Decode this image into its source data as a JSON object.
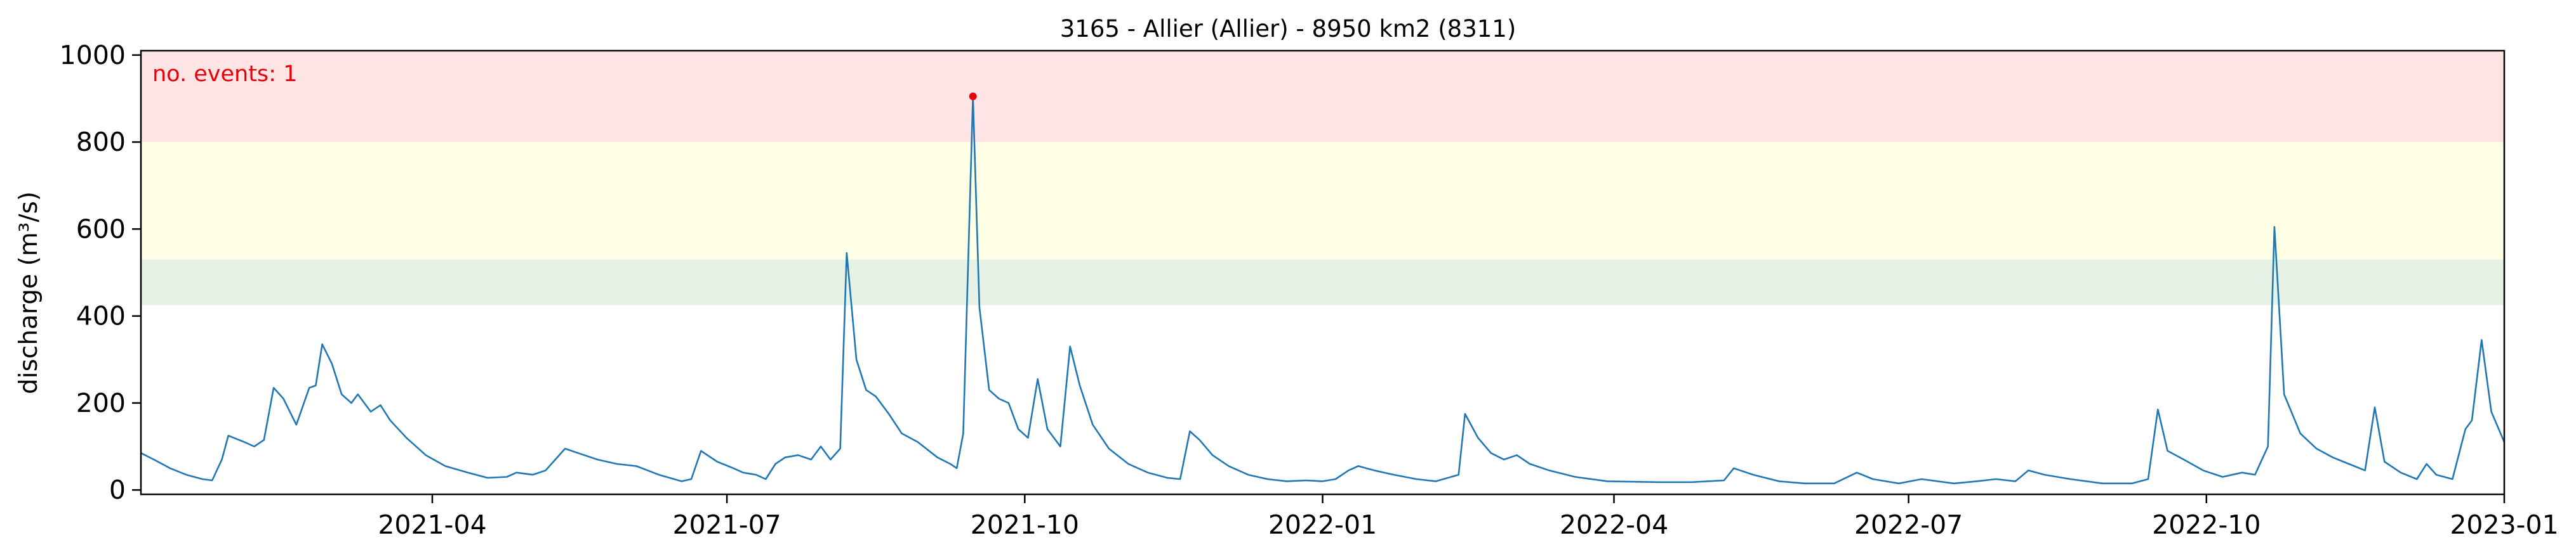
{
  "chart_data": {
    "type": "line",
    "title": "3165 - Allier (Allier) - 8950 km2 (8311)",
    "xlabel": "",
    "ylabel": "discharge (m³/s)",
    "xlim": [
      "2021-01-01",
      "2023-01-01"
    ],
    "ylim": [
      -10,
      1010
    ],
    "x_ticks": [
      "2021-04-01",
      "2021-07-01",
      "2021-10-01",
      "2022-01-01",
      "2022-04-01",
      "2022-07-01",
      "2022-10-01",
      "2023-01-01"
    ],
    "x_tick_labels": [
      "2021-04",
      "2021-07",
      "2021-10",
      "2022-01",
      "2022-04",
      "2022-07",
      "2022-10",
      "2023-01"
    ],
    "y_ticks": [
      0,
      200,
      400,
      600,
      800,
      1000
    ],
    "y_tick_labels": [
      "0",
      "200",
      "400",
      "600",
      "800",
      "1000"
    ],
    "grid": false,
    "threshold_bands": [
      {
        "from": 425,
        "to": 530,
        "color": "#e6f2e6"
      },
      {
        "from": 530,
        "to": 800,
        "color": "#fefee5"
      },
      {
        "from": 800,
        "to": 1010,
        "color": "#ffe4e6"
      }
    ],
    "annotation": "no. events: 1",
    "events": [
      {
        "x": "2021-09-15",
        "y": 905
      }
    ],
    "line_color": "#1f77b4",
    "event_color": "#e8000b",
    "series": [
      {
        "values": [
          [
            "2021-01-01",
            85
          ],
          [
            "2021-01-05",
            70
          ],
          [
            "2021-01-10",
            50
          ],
          [
            "2021-01-15",
            35
          ],
          [
            "2021-01-20",
            25
          ],
          [
            "2021-01-23",
            22
          ],
          [
            "2021-01-26",
            70
          ],
          [
            "2021-01-28",
            125
          ],
          [
            "2021-02-02",
            110
          ],
          [
            "2021-02-05",
            100
          ],
          [
            "2021-02-08",
            115
          ],
          [
            "2021-02-11",
            235
          ],
          [
            "2021-02-14",
            210
          ],
          [
            "2021-02-18",
            150
          ],
          [
            "2021-02-22",
            235
          ],
          [
            "2021-02-24",
            240
          ],
          [
            "2021-02-26",
            335
          ],
          [
            "2021-03-01",
            290
          ],
          [
            "2021-03-04",
            220
          ],
          [
            "2021-03-07",
            200
          ],
          [
            "2021-03-09",
            220
          ],
          [
            "2021-03-13",
            180
          ],
          [
            "2021-03-16",
            195
          ],
          [
            "2021-03-19",
            160
          ],
          [
            "2021-03-24",
            120
          ],
          [
            "2021-03-30",
            80
          ],
          [
            "2021-04-05",
            55
          ],
          [
            "2021-04-12",
            40
          ],
          [
            "2021-04-18",
            28
          ],
          [
            "2021-04-24",
            30
          ],
          [
            "2021-04-27",
            40
          ],
          [
            "2021-05-02",
            35
          ],
          [
            "2021-05-06",
            45
          ],
          [
            "2021-05-09",
            70
          ],
          [
            "2021-05-12",
            95
          ],
          [
            "2021-05-16",
            85
          ],
          [
            "2021-05-22",
            70
          ],
          [
            "2021-05-28",
            60
          ],
          [
            "2021-06-03",
            55
          ],
          [
            "2021-06-10",
            35
          ],
          [
            "2021-06-17",
            20
          ],
          [
            "2021-06-20",
            25
          ],
          [
            "2021-06-23",
            90
          ],
          [
            "2021-06-28",
            65
          ],
          [
            "2021-07-03",
            50
          ],
          [
            "2021-07-06",
            40
          ],
          [
            "2021-07-10",
            35
          ],
          [
            "2021-07-13",
            25
          ],
          [
            "2021-07-16",
            60
          ],
          [
            "2021-07-19",
            75
          ],
          [
            "2021-07-23",
            80
          ],
          [
            "2021-07-27",
            70
          ],
          [
            "2021-07-30",
            100
          ],
          [
            "2021-08-02",
            70
          ],
          [
            "2021-08-05",
            95
          ],
          [
            "2021-08-07",
            545
          ],
          [
            "2021-08-10",
            300
          ],
          [
            "2021-08-13",
            230
          ],
          [
            "2021-08-16",
            215
          ],
          [
            "2021-08-20",
            175
          ],
          [
            "2021-08-24",
            130
          ],
          [
            "2021-08-29",
            110
          ],
          [
            "2021-09-04",
            75
          ],
          [
            "2021-09-08",
            60
          ],
          [
            "2021-09-10",
            50
          ],
          [
            "2021-09-12",
            130
          ],
          [
            "2021-09-15",
            905
          ],
          [
            "2021-09-17",
            420
          ],
          [
            "2021-09-20",
            230
          ],
          [
            "2021-09-23",
            210
          ],
          [
            "2021-09-26",
            200
          ],
          [
            "2021-09-29",
            140
          ],
          [
            "2021-10-02",
            120
          ],
          [
            "2021-10-05",
            255
          ],
          [
            "2021-10-08",
            140
          ],
          [
            "2021-10-12",
            100
          ],
          [
            "2021-10-15",
            330
          ],
          [
            "2021-10-18",
            240
          ],
          [
            "2021-10-22",
            150
          ],
          [
            "2021-10-27",
            95
          ],
          [
            "2021-11-02",
            60
          ],
          [
            "2021-11-08",
            40
          ],
          [
            "2021-11-14",
            28
          ],
          [
            "2021-11-18",
            25
          ],
          [
            "2021-11-21",
            135
          ],
          [
            "2021-11-24",
            115
          ],
          [
            "2021-11-28",
            80
          ],
          [
            "2021-12-03",
            55
          ],
          [
            "2021-12-09",
            35
          ],
          [
            "2021-12-15",
            25
          ],
          [
            "2021-12-21",
            20
          ],
          [
            "2021-12-27",
            22
          ],
          [
            "2022-01-01",
            20
          ],
          [
            "2022-01-05",
            25
          ],
          [
            "2022-01-09",
            45
          ],
          [
            "2022-01-12",
            55
          ],
          [
            "2022-01-17",
            45
          ],
          [
            "2022-01-23",
            35
          ],
          [
            "2022-01-30",
            25
          ],
          [
            "2022-02-05",
            20
          ],
          [
            "2022-02-12",
            35
          ],
          [
            "2022-02-14",
            175
          ],
          [
            "2022-02-18",
            120
          ],
          [
            "2022-02-22",
            85
          ],
          [
            "2022-02-26",
            70
          ],
          [
            "2022-03-02",
            80
          ],
          [
            "2022-03-06",
            60
          ],
          [
            "2022-03-12",
            45
          ],
          [
            "2022-03-20",
            30
          ],
          [
            "2022-03-30",
            20
          ],
          [
            "2022-04-15",
            18
          ],
          [
            "2022-04-25",
            18
          ],
          [
            "2022-05-05",
            22
          ],
          [
            "2022-05-08",
            50
          ],
          [
            "2022-05-14",
            35
          ],
          [
            "2022-05-22",
            20
          ],
          [
            "2022-05-30",
            15
          ],
          [
            "2022-06-08",
            15
          ],
          [
            "2022-06-15",
            40
          ],
          [
            "2022-06-20",
            25
          ],
          [
            "2022-06-28",
            15
          ],
          [
            "2022-07-05",
            25
          ],
          [
            "2022-07-10",
            20
          ],
          [
            "2022-07-15",
            15
          ],
          [
            "2022-07-22",
            20
          ],
          [
            "2022-07-28",
            25
          ],
          [
            "2022-08-03",
            20
          ],
          [
            "2022-08-07",
            45
          ],
          [
            "2022-08-12",
            35
          ],
          [
            "2022-08-20",
            25
          ],
          [
            "2022-08-30",
            15
          ],
          [
            "2022-09-08",
            15
          ],
          [
            "2022-09-13",
            25
          ],
          [
            "2022-09-16",
            185
          ],
          [
            "2022-09-19",
            90
          ],
          [
            "2022-09-24",
            70
          ],
          [
            "2022-09-30",
            45
          ],
          [
            "2022-10-06",
            30
          ],
          [
            "2022-10-12",
            40
          ],
          [
            "2022-10-16",
            35
          ],
          [
            "2022-10-20",
            100
          ],
          [
            "2022-10-22",
            605
          ],
          [
            "2022-10-25",
            220
          ],
          [
            "2022-10-30",
            130
          ],
          [
            "2022-11-04",
            95
          ],
          [
            "2022-11-09",
            75
          ],
          [
            "2022-11-14",
            60
          ],
          [
            "2022-11-19",
            45
          ],
          [
            "2022-11-22",
            190
          ],
          [
            "2022-11-25",
            65
          ],
          [
            "2022-11-30",
            40
          ],
          [
            "2022-12-05",
            25
          ],
          [
            "2022-12-08",
            60
          ],
          [
            "2022-12-11",
            35
          ],
          [
            "2022-12-16",
            25
          ],
          [
            "2022-12-20",
            140
          ],
          [
            "2022-12-22",
            160
          ],
          [
            "2022-12-25",
            345
          ],
          [
            "2022-12-28",
            180
          ],
          [
            "2023-01-02",
            110
          ]
        ]
      }
    ]
  }
}
